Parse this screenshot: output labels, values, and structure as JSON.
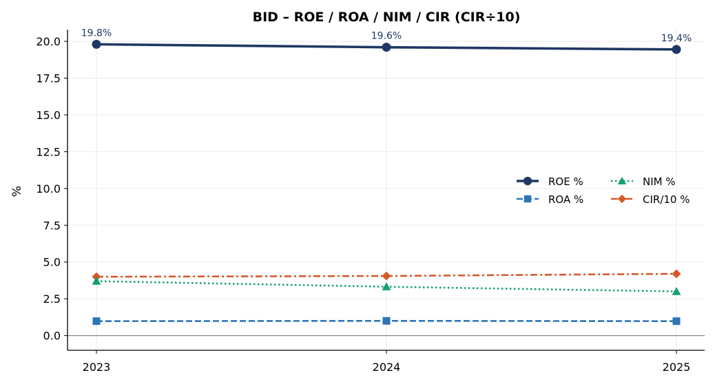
{
  "chart_data": {
    "type": "line",
    "title": "BID – ROE / ROA / NIM / CIR  (CIR÷10)",
    "xlabel": "",
    "ylabel": "%",
    "categories": [
      "2023",
      "2024",
      "2025"
    ],
    "ylim": [
      -1.0,
      20.8
    ],
    "yticks": [
      "0.0",
      "2.5",
      "5.0",
      "7.5",
      "10.0",
      "12.5",
      "15.0",
      "17.5",
      "20.0"
    ],
    "grid": true,
    "legend_position": "center-right",
    "series": [
      {
        "name": "ROE %",
        "values": [
          19.8,
          19.6,
          19.45
        ],
        "color": "#1f3864",
        "style": "solid",
        "marker": "circle",
        "data_labels": [
          "19.8%",
          "19.6%",
          "19.4%"
        ]
      },
      {
        "name": "ROA %",
        "values": [
          0.98,
          1.0,
          0.98
        ],
        "color": "#2e75b6",
        "style": "dashed",
        "marker": "square"
      },
      {
        "name": "NIM %",
        "values": [
          3.7,
          3.32,
          3.0
        ],
        "color": "#16a070",
        "style": "dotted",
        "marker": "triangle"
      },
      {
        "name": "CIR/10 %",
        "values": [
          4.0,
          4.05,
          4.2
        ],
        "color": "#d45a2a",
        "style": "dashdot",
        "marker": "diamond"
      }
    ]
  }
}
